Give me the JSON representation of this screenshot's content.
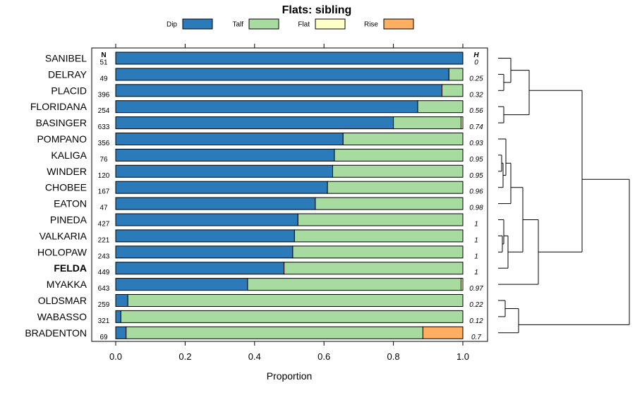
{
  "chart_data": {
    "type": "stacked-bar-horizontal",
    "title": "Flats: sibling",
    "xlabel": "Proportion",
    "ylabel": "",
    "xlim": [
      0,
      1
    ],
    "xticks": [
      "0.0",
      "0.2",
      "0.4",
      "0.6",
      "0.8",
      "1.0"
    ],
    "xtick_values": [
      0,
      0.2,
      0.4,
      0.6,
      0.8,
      1.0
    ],
    "n_header": "N",
    "h_header": "H",
    "legend": [
      {
        "name": "Dip",
        "color": "#2b7bba"
      },
      {
        "name": "Talf",
        "color": "#a8dba0"
      },
      {
        "name": "Flat",
        "color": "#ffffc8"
      },
      {
        "name": "Rise",
        "color": "#fdae61"
      }
    ],
    "series_names": [
      "Dip",
      "Talf",
      "Flat",
      "Rise"
    ],
    "colors": [
      "#2b7bba",
      "#a8dba0",
      "#ffffc8",
      "#fdae61"
    ],
    "rows": [
      {
        "label": "SANIBEL",
        "n": "51",
        "h": "0",
        "bold": false,
        "values": [
          1.0,
          0.0,
          0,
          0
        ]
      },
      {
        "label": "DELRAY",
        "n": "49",
        "h": "0.25",
        "bold": false,
        "values": [
          0.96,
          0.04,
          0,
          0
        ]
      },
      {
        "label": "PLACID",
        "n": "396",
        "h": "0.32",
        "bold": false,
        "values": [
          0.94,
          0.06,
          0,
          0
        ]
      },
      {
        "label": "FLORIDANA",
        "n": "254",
        "h": "0.56",
        "bold": false,
        "values": [
          0.87,
          0.13,
          0,
          0
        ]
      },
      {
        "label": "BASINGER",
        "n": "633",
        "h": "0.74",
        "bold": false,
        "values": [
          0.8,
          0.195,
          0.005,
          0
        ]
      },
      {
        "label": "POMPANO",
        "n": "356",
        "h": "0.93",
        "bold": false,
        "values": [
          0.655,
          0.345,
          0,
          0
        ]
      },
      {
        "label": "KALIGA",
        "n": "76",
        "h": "0.95",
        "bold": false,
        "values": [
          0.63,
          0.37,
          0,
          0
        ]
      },
      {
        "label": "WINDER",
        "n": "120",
        "h": "0.95",
        "bold": false,
        "values": [
          0.625,
          0.375,
          0,
          0
        ]
      },
      {
        "label": "CHOBEE",
        "n": "167",
        "h": "0.96",
        "bold": false,
        "values": [
          0.61,
          0.39,
          0,
          0
        ]
      },
      {
        "label": "EATON",
        "n": "47",
        "h": "0.98",
        "bold": false,
        "values": [
          0.575,
          0.425,
          0,
          0
        ]
      },
      {
        "label": "PINEDA",
        "n": "427",
        "h": "1",
        "bold": false,
        "values": [
          0.525,
          0.475,
          0,
          0
        ]
      },
      {
        "label": "VALKARIA",
        "n": "221",
        "h": "1",
        "bold": false,
        "values": [
          0.515,
          0.485,
          0,
          0
        ]
      },
      {
        "label": "HOLOPAW",
        "n": "243",
        "h": "1",
        "bold": false,
        "values": [
          0.51,
          0.49,
          0,
          0
        ]
      },
      {
        "label": "FELDA",
        "n": "449",
        "h": "1",
        "bold": true,
        "values": [
          0.485,
          0.515,
          0,
          0
        ]
      },
      {
        "label": "MYAKKA",
        "n": "643",
        "h": "0.97",
        "bold": false,
        "values": [
          0.38,
          0.615,
          0.005,
          0
        ]
      },
      {
        "label": "OLDSMAR",
        "n": "259",
        "h": "0.22",
        "bold": false,
        "values": [
          0.035,
          0.965,
          0,
          0
        ]
      },
      {
        "label": "WABASSO",
        "n": "321",
        "h": "0.12",
        "bold": false,
        "values": [
          0.015,
          0.985,
          0,
          0
        ]
      },
      {
        "label": "BRADENTON",
        "n": "69",
        "h": "0.7",
        "bold": false,
        "values": [
          0.03,
          0.855,
          0,
          0.115
        ]
      }
    ],
    "dendrogram": {
      "leaves": [
        "SANIBEL",
        "DELRAY",
        "PLACID",
        "FLORIDANA",
        "BASINGER",
        "POMPANO",
        "KALIGA",
        "WINDER",
        "CHOBEE",
        "EATON",
        "PINEDA",
        "VALKARIA",
        "HOLOPAW",
        "FELDA",
        "MYAKKA",
        "OLDSMAR",
        "WABASSO",
        "BRADENTON"
      ],
      "merges": [
        [
          1,
          2,
          0.006
        ],
        [
          3,
          4,
          0.014
        ],
        [
          11,
          12,
          0.006
        ],
        [
          12,
          13,
          0.01
        ],
        [
          6,
          7,
          0.006
        ],
        [
          8,
          9,
          0.006
        ],
        [
          16,
          17,
          0.012
        ],
        [
          0,
          1,
          0.012
        ],
        [
          3,
          4,
          0.008
        ],
        [
          5,
          6,
          0.01
        ],
        [
          7,
          8,
          0.014
        ],
        [
          10,
          11,
          0.01
        ],
        [
          9,
          10,
          0.03
        ],
        [
          4,
          9,
          0.055
        ],
        [
          15,
          16,
          0.026
        ],
        [
          5,
          14,
          0.05
        ],
        [
          1,
          13,
          0.116
        ],
        [
          0,
          15,
          0.138
        ]
      ]
    }
  }
}
